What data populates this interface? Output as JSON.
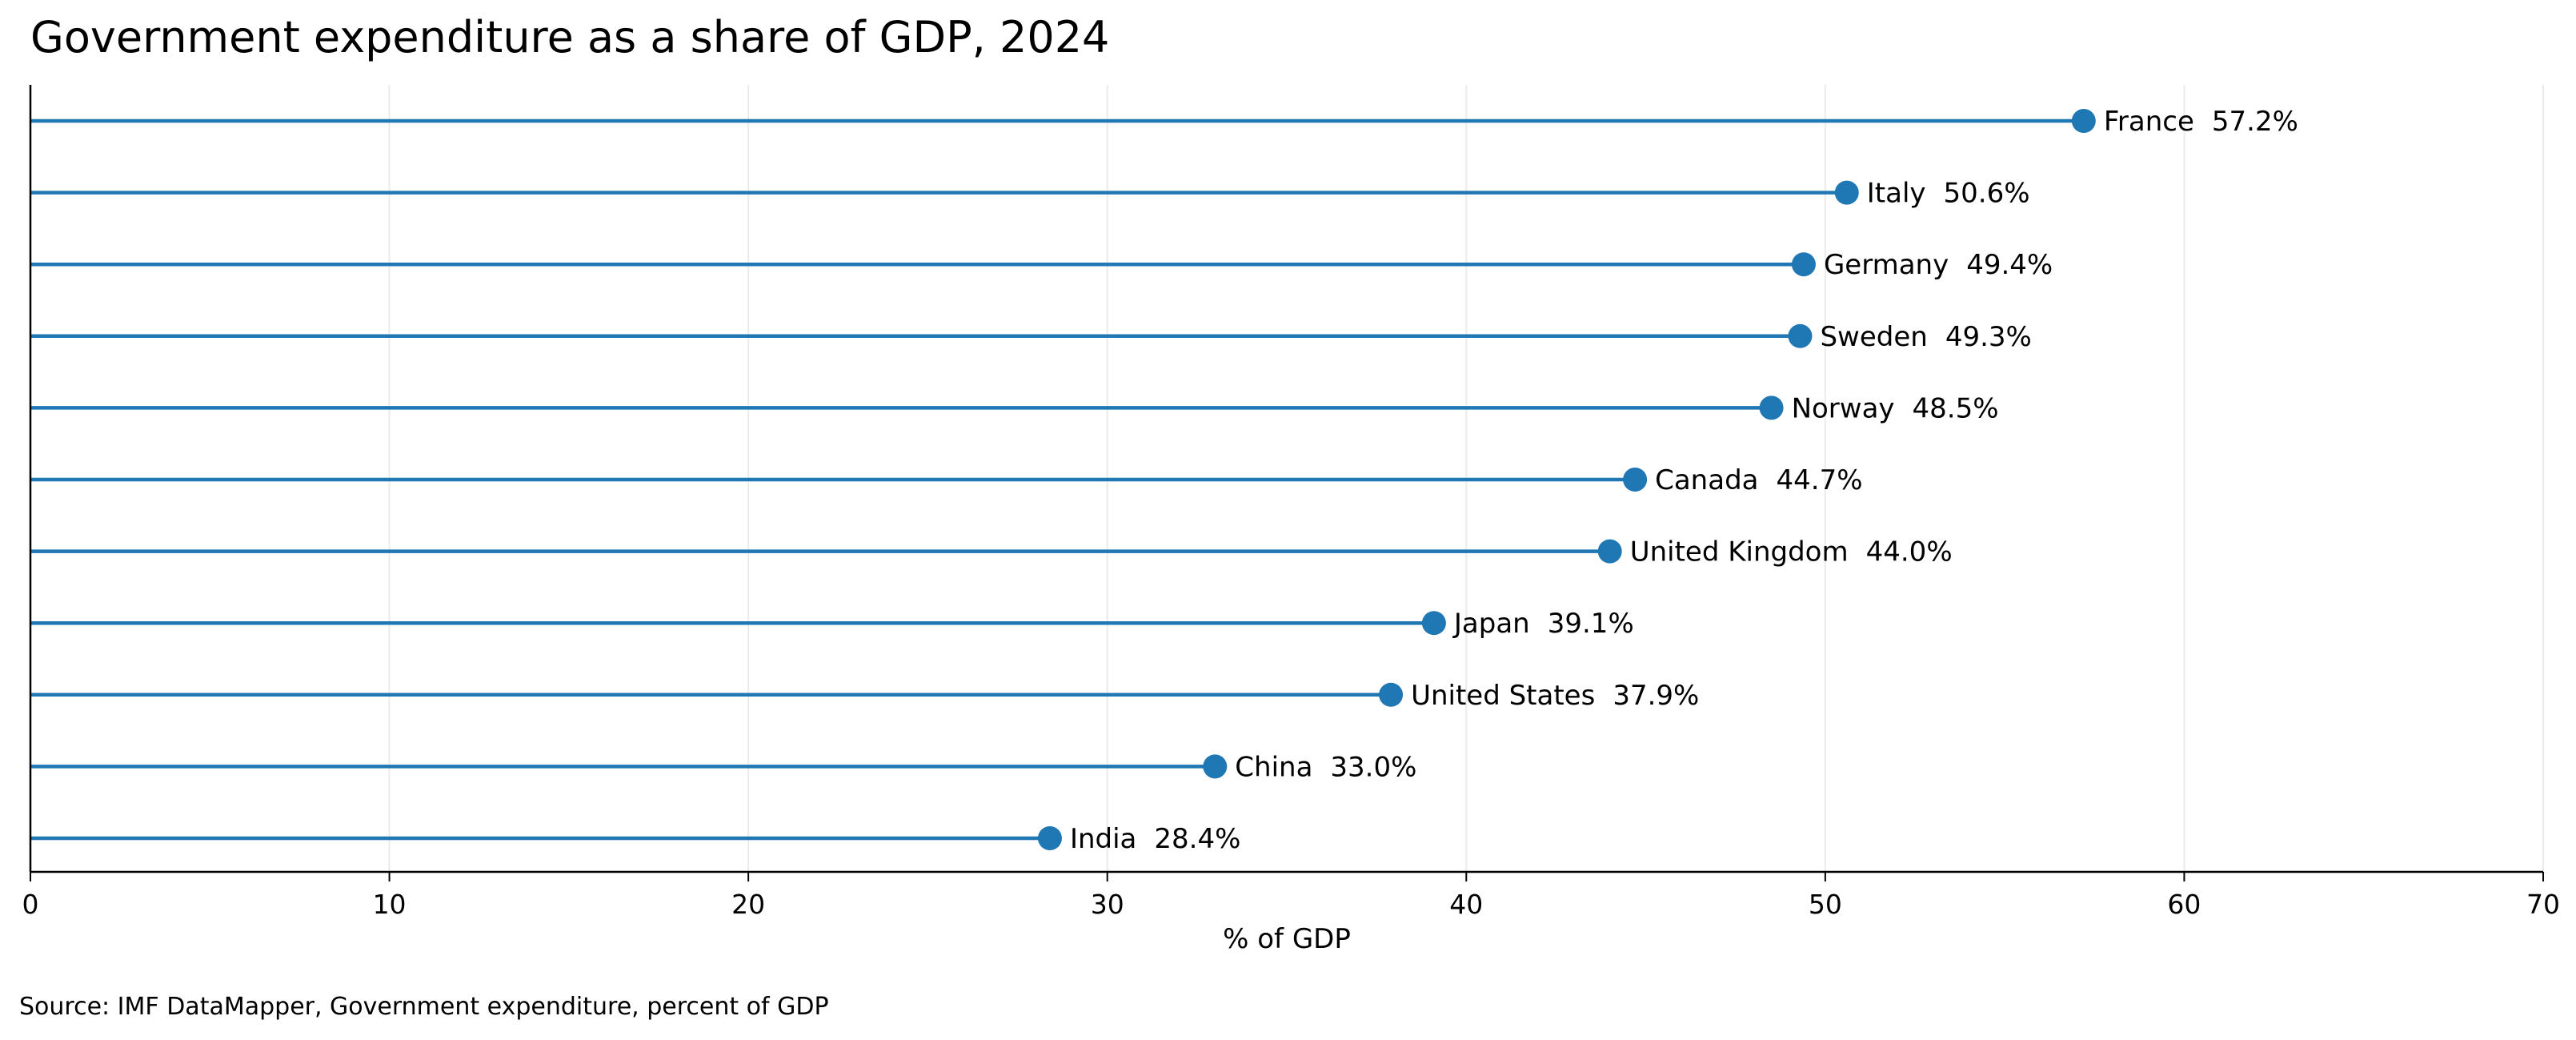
{
  "chart_data": {
    "type": "lollipop",
    "title": "Government expenditure as a share of GDP, 2024",
    "xlabel": "% of GDP",
    "ylabel": "",
    "xlim": [
      0,
      70
    ],
    "xticks": [
      0,
      10,
      20,
      30,
      40,
      50,
      60,
      70
    ],
    "grid": "vertical",
    "categories": [
      "France",
      "Italy",
      "Germany",
      "Sweden",
      "Norway",
      "Canada",
      "United Kingdom",
      "Japan",
      "United States",
      "China",
      "India"
    ],
    "values": [
      57.2,
      50.6,
      49.4,
      49.3,
      48.5,
      44.7,
      44.0,
      39.1,
      37.9,
      33.0,
      28.4
    ],
    "value_labels": [
      "57.2%",
      "50.6%",
      "49.4%",
      "49.3%",
      "48.5%",
      "44.7%",
      "44.0%",
      "39.1%",
      "37.9%",
      "33.0%",
      "28.4%"
    ],
    "colors": {
      "series": "#1f77b4",
      "grid": "#ebebeb",
      "axis": "#000000"
    },
    "source": "Source: IMF DataMapper, Government expenditure, percent of GDP"
  }
}
